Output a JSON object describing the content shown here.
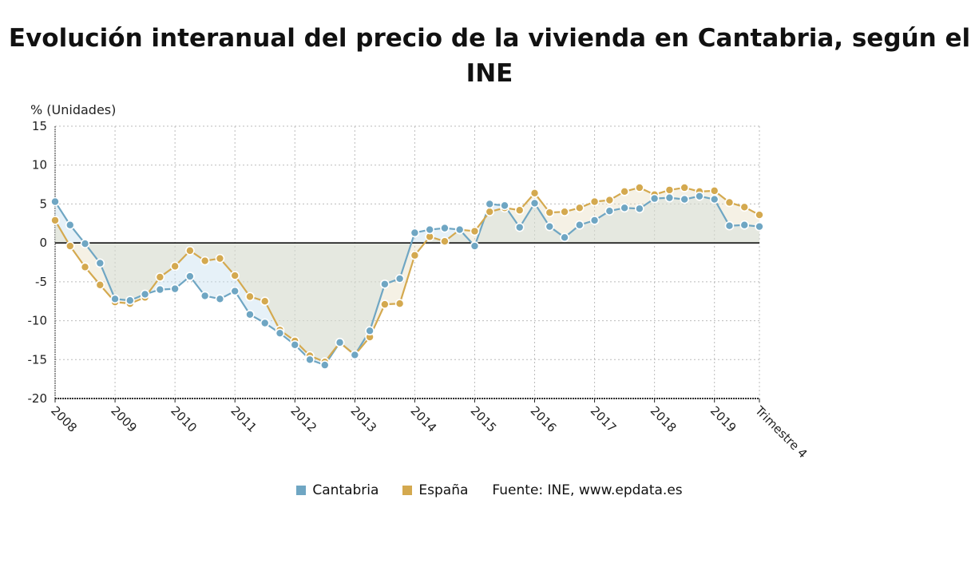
{
  "chart_data": {
    "type": "line",
    "title": "Evolución interanual del precio de la vivienda en Cantabria, según el INE",
    "ylabel": "% (Unidades)",
    "xlabel": "",
    "ylim": [
      -20,
      15
    ],
    "yticks": [
      15,
      10,
      5,
      0,
      -5,
      -10,
      -15,
      -20
    ],
    "xtick_labels": [
      "2008",
      "2009",
      "2010",
      "2011",
      "2012",
      "2013",
      "2014",
      "2015",
      "2016",
      "2017",
      "2018",
      "2019",
      "Trimestre 4"
    ],
    "grid": true,
    "legend_position": "bottom",
    "source": "Fuente: INE, www.epdata.es",
    "series": [
      {
        "name": "Cantabria",
        "color": "#6fa6c3",
        "values": [
          5.3,
          2.3,
          -0.1,
          -2.6,
          -7.2,
          -7.4,
          -6.6,
          -6.0,
          -5.9,
          -4.3,
          -6.8,
          -7.2,
          -6.2,
          -9.2,
          -10.3,
          -11.6,
          -13.1,
          -15.0,
          -15.7,
          -12.8,
          -14.4,
          -11.3,
          -5.3,
          -4.6,
          1.3,
          1.7,
          1.9,
          1.7,
          -0.4,
          5.0,
          4.8,
          2.0,
          5.1,
          2.1,
          0.7,
          2.3,
          2.9,
          4.1,
          4.5,
          4.4,
          5.7,
          5.8,
          5.6,
          6.0,
          5.6,
          2.2,
          2.3,
          2.1
        ]
      },
      {
        "name": "España",
        "color": "#d4a94f",
        "values": [
          2.9,
          -0.4,
          -3.1,
          -5.4,
          -7.6,
          -7.8,
          -7.0,
          -4.4,
          -3.0,
          -1.0,
          -2.3,
          -2.0,
          -4.2,
          -6.9,
          -7.5,
          -11.2,
          -12.6,
          -14.5,
          -15.3,
          -12.8,
          -14.4,
          -12.1,
          -7.9,
          -7.8,
          -1.6,
          0.8,
          0.2,
          1.7,
          1.5,
          4.0,
          4.5,
          4.2,
          6.4,
          3.9,
          4.0,
          4.5,
          5.3,
          5.5,
          6.6,
          7.1,
          6.2,
          6.8,
          7.1,
          6.6,
          6.7,
          5.2,
          4.6,
          3.6
        ]
      }
    ]
  }
}
